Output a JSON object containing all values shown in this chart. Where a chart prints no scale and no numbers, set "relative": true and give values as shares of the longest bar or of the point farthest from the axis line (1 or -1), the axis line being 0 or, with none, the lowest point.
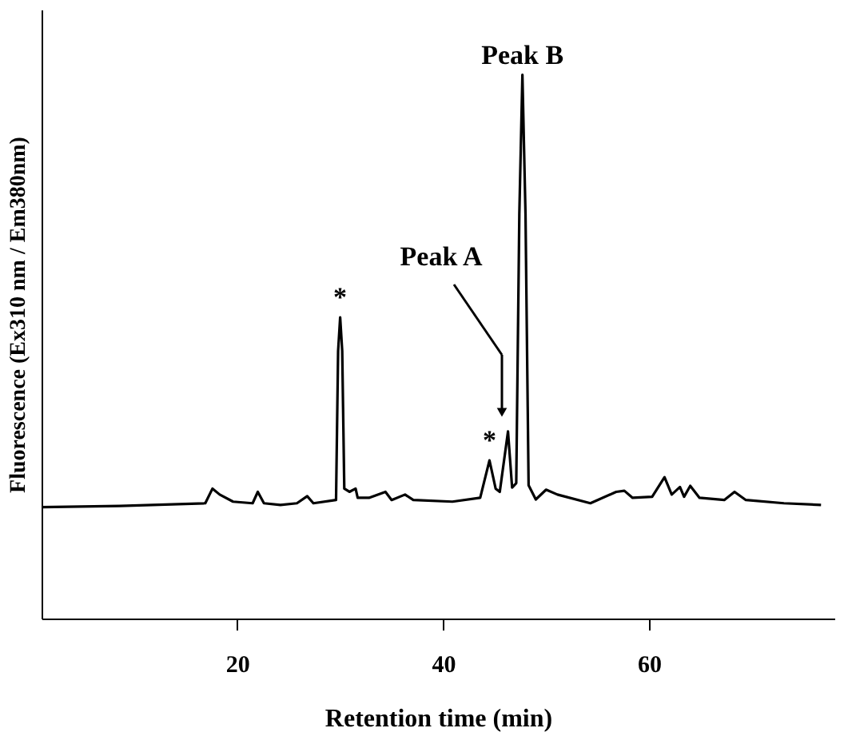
{
  "chart_data": {
    "type": "line",
    "xlabel": "Retention time (min)",
    "ylabel": "Fluorescence (Ex310 nm / Em380nm)",
    "relative": true,
    "grid": false,
    "marker": "none",
    "line_style": "solid",
    "xlim": [
      1,
      78
    ],
    "xticks": [
      20,
      40,
      60
    ],
    "x": [
      1,
      8.6,
      16.9,
      17.6,
      18.3,
      19.6,
      21.5,
      22.0,
      22.6,
      24.2,
      25.8,
      26.8,
      27.4,
      29.6,
      29.8,
      30.0,
      30.2,
      30.4,
      30.9,
      31.5,
      31.7,
      32.8,
      34.4,
      35.0,
      36.3,
      37.1,
      40.9,
      43.6,
      44.5,
      45.1,
      45.5,
      46.3,
      46.7,
      47.1,
      47.4,
      47.7,
      48.0,
      48.3,
      49.0,
      50.0,
      51.1,
      54.3,
      56.8,
      57.6,
      58.4,
      60.3,
      61.5,
      62.2,
      63.0,
      63.4,
      64.0,
      64.9,
      67.3,
      68.3,
      69.4,
      73.1,
      76.7
    ],
    "series": [
      {
        "color": "#000000",
        "values": [
          0.205,
          0.207,
          0.212,
          0.239,
          0.228,
          0.215,
          0.212,
          0.233,
          0.212,
          0.209,
          0.212,
          0.225,
          0.212,
          0.218,
          0.492,
          0.554,
          0.492,
          0.239,
          0.233,
          0.239,
          0.222,
          0.222,
          0.233,
          0.218,
          0.228,
          0.218,
          0.215,
          0.222,
          0.291,
          0.239,
          0.233,
          0.344,
          0.241,
          0.249,
          0.744,
          1,
          0.744,
          0.245,
          0.219,
          0.237,
          0.228,
          0.212,
          0.233,
          0.235,
          0.222,
          0.224,
          0.26,
          0.228,
          0.242,
          0.224,
          0.244,
          0.222,
          0.218,
          0.233,
          0.218,
          0.212,
          0.209
        ]
      }
    ],
    "annotations": [
      {
        "text": "Peak B",
        "x": 47.7,
        "y": 1
      },
      "Peak A",
      {
        "text": "*",
        "x": 30.0,
        "y": 0.554
      },
      {
        "text": "*",
        "x": 44.5,
        "y": 0.291
      }
    ]
  }
}
